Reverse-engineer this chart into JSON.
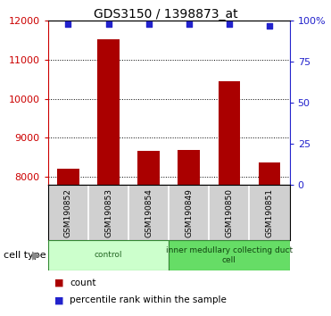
{
  "title": "GDS3150 / 1398873_at",
  "categories": [
    "GSM190852",
    "GSM190853",
    "GSM190854",
    "GSM190849",
    "GSM190850",
    "GSM190851"
  ],
  "counts": [
    8220,
    11520,
    8660,
    8700,
    10460,
    8380
  ],
  "percentile_ranks": [
    98,
    98,
    98,
    98,
    98,
    97
  ],
  "ylim_left": [
    7800,
    12000
  ],
  "ylim_right": [
    0,
    100
  ],
  "yticks_left": [
    8000,
    9000,
    10000,
    11000,
    12000
  ],
  "yticks_right": [
    0,
    25,
    50,
    75,
    100
  ],
  "ytick_labels_right": [
    "0",
    "25",
    "50",
    "75",
    "100%"
  ],
  "bar_color": "#aa0000",
  "scatter_color": "#2222cc",
  "bar_width": 0.55,
  "left_tick_color": "#cc0000",
  "right_tick_color": "#2222cc",
  "cell_types": [
    {
      "label": "control",
      "n_samples": 3,
      "color": "#ccffcc",
      "text_color": "#226622"
    },
    {
      "label": "inner medullary collecting duct\ncell",
      "n_samples": 3,
      "color": "#66dd66",
      "text_color": "#114411"
    }
  ],
  "cell_type_label": "cell type",
  "legend_count_label": "count",
  "legend_percentile_label": "percentile rank within the sample",
  "label_box_color": "#d0d0d0",
  "background_color": "#ffffff"
}
